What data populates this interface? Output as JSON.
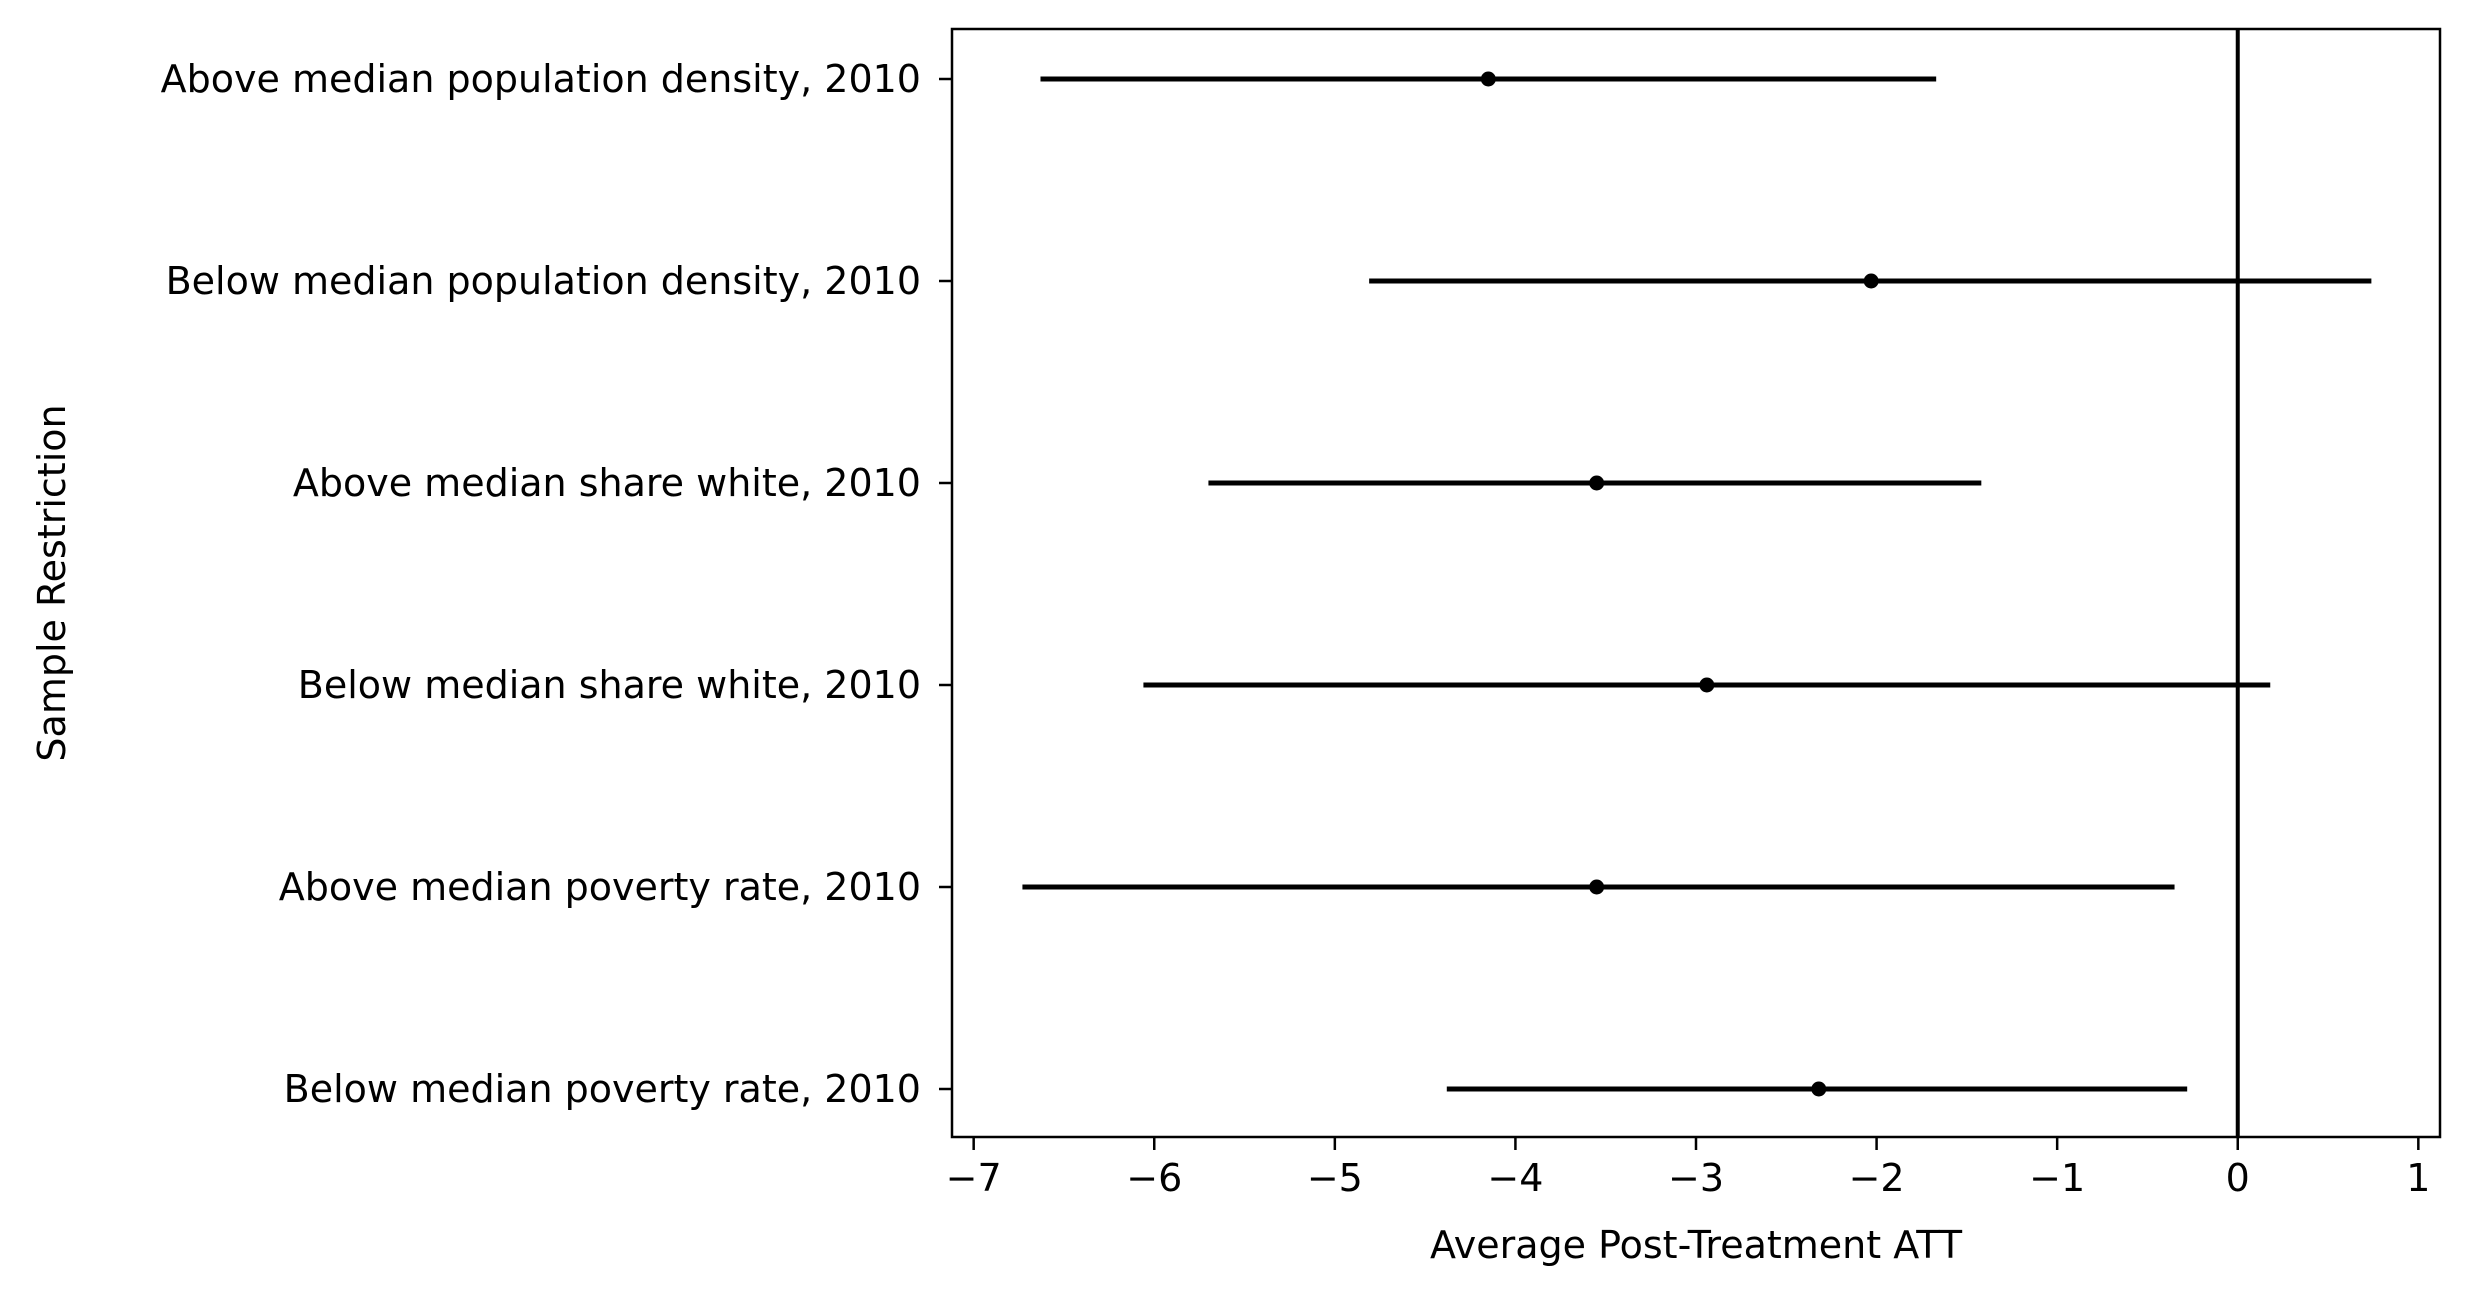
{
  "chart_data": {
    "type": "forest",
    "title": "",
    "xlabel": "Average Post-Treatment ATT",
    "ylabel": "Sample Restriction",
    "xlim": [
      -7.12,
      1.12
    ],
    "xticks": [
      -7,
      -6,
      -5,
      -4,
      -3,
      -2,
      -1,
      0,
      1
    ],
    "xtick_labels": [
      "−7",
      "−6",
      "−5",
      "−4",
      "−3",
      "−2",
      "−1",
      "0",
      "1"
    ],
    "reference_line_x": 0,
    "grid": false,
    "legend": null,
    "colors": {
      "marks": "#000000",
      "axes": "#000000",
      "background": "#ffffff"
    },
    "categories": [
      "Above median population density, 2010",
      "Below median population density, 2010",
      "Above median share white, 2010",
      "Below median share white, 2010",
      "Above median poverty rate, 2010",
      "Below median poverty rate, 2010"
    ],
    "estimates": [
      -4.15,
      -2.03,
      -3.55,
      -2.94,
      -3.55,
      -2.32
    ],
    "ci_lower": [
      -6.63,
      -4.81,
      -5.7,
      -6.06,
      -6.73,
      -4.38
    ],
    "ci_upper": [
      -1.67,
      0.74,
      -1.42,
      0.18,
      -0.35,
      -0.28
    ]
  }
}
